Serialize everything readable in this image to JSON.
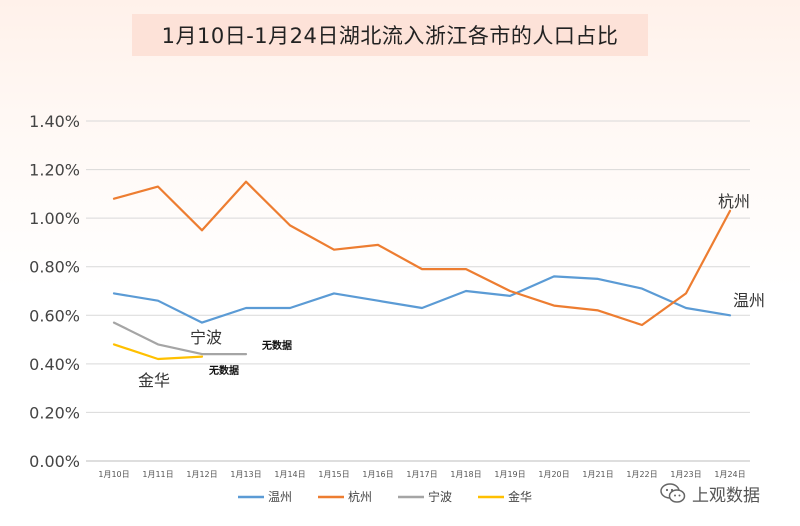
{
  "title": "1月10日-1月24日湖北流入浙江各市的人口占比",
  "chart_data": {
    "type": "line",
    "title": "1月10日-1月24日湖北流入浙江各市的人口占比",
    "categories": [
      "1月10日",
      "1月11日",
      "1月12日",
      "1月13日",
      "1月14日",
      "1月15日",
      "1月16日",
      "1月17日",
      "1月18日",
      "1月19日",
      "1月20日",
      "1月21日",
      "1月22日",
      "1月23日",
      "1月24日"
    ],
    "y_ticks": [
      "0.00%",
      "0.20%",
      "0.40%",
      "0.60%",
      "0.80%",
      "1.00%",
      "1.20%",
      "1.40%"
    ],
    "ylim": [
      0,
      1.4
    ],
    "grid": true,
    "legend_position": "bottom",
    "series": [
      {
        "name": "温州",
        "color": "#5b9bd5",
        "values": [
          0.69,
          0.66,
          0.57,
          0.63,
          0.63,
          0.69,
          0.66,
          0.63,
          0.7,
          0.68,
          0.76,
          0.75,
          0.71,
          0.63,
          0.6
        ]
      },
      {
        "name": "杭州",
        "color": "#ed7d31",
        "values": [
          1.08,
          1.13,
          0.95,
          1.15,
          0.97,
          0.87,
          0.89,
          0.79,
          0.79,
          0.7,
          0.64,
          0.62,
          0.56,
          0.69,
          1.03
        ]
      },
      {
        "name": "宁波",
        "color": "#a5a5a5",
        "values": [
          0.57,
          0.48,
          0.44,
          0.44,
          null,
          null,
          null,
          null,
          null,
          null,
          null,
          null,
          null,
          null,
          null
        ]
      },
      {
        "name": "金华",
        "color": "#ffc000",
        "values": [
          0.48,
          0.42,
          0.43,
          null,
          null,
          null,
          null,
          null,
          null,
          null,
          null,
          null,
          null,
          null,
          null
        ]
      }
    ],
    "annotations": {
      "hangzhou": "杭州",
      "wenzhou": "温州",
      "ningbo": "宁波",
      "jinhua": "金华",
      "ningbo_no_data": "无数据",
      "jinhua_no_data": "无数据"
    }
  },
  "watermark": {
    "icon": "wechat-icon",
    "text": "上观数据"
  }
}
